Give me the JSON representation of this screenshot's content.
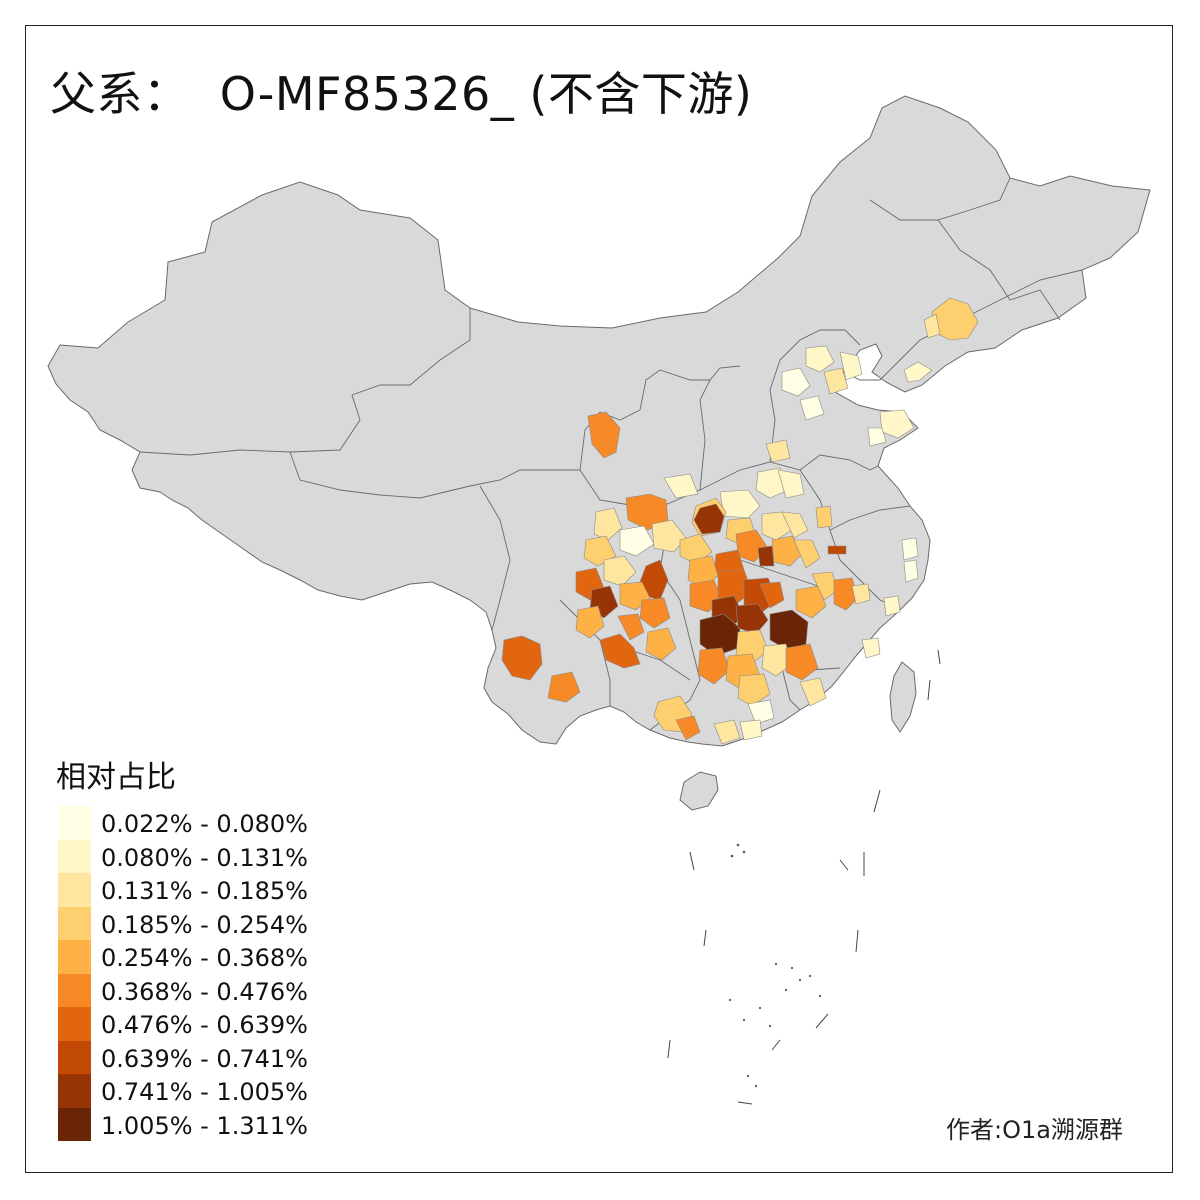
{
  "title": "父系：  O-MF85326_ (不含下游)",
  "legend": {
    "title": "相对占比",
    "items": [
      {
        "label": "0.022% - 0.080%",
        "color": "#ffffe5"
      },
      {
        "label": "0.080% - 0.131%",
        "color": "#fff7c8"
      },
      {
        "label": "0.131% - 0.185%",
        "color": "#fee6a0"
      },
      {
        "label": "0.185% - 0.254%",
        "color": "#fecf6e"
      },
      {
        "label": "0.254% - 0.368%",
        "color": "#feb144"
      },
      {
        "label": "0.368% - 0.476%",
        "color": "#f78a26"
      },
      {
        "label": "0.476% - 0.639%",
        "color": "#e2660f"
      },
      {
        "label": "0.639% - 0.741%",
        "color": "#c24a05"
      },
      {
        "label": "0.741% - 1.005%",
        "color": "#973405"
      },
      {
        "label": "1.005% - 1.311%",
        "color": "#6a2506"
      }
    ]
  },
  "credit": "作者:O1a溯源群",
  "colors": {
    "land": "#d9d9d9",
    "border": "#6a6a6a",
    "frame": "#222222"
  }
}
